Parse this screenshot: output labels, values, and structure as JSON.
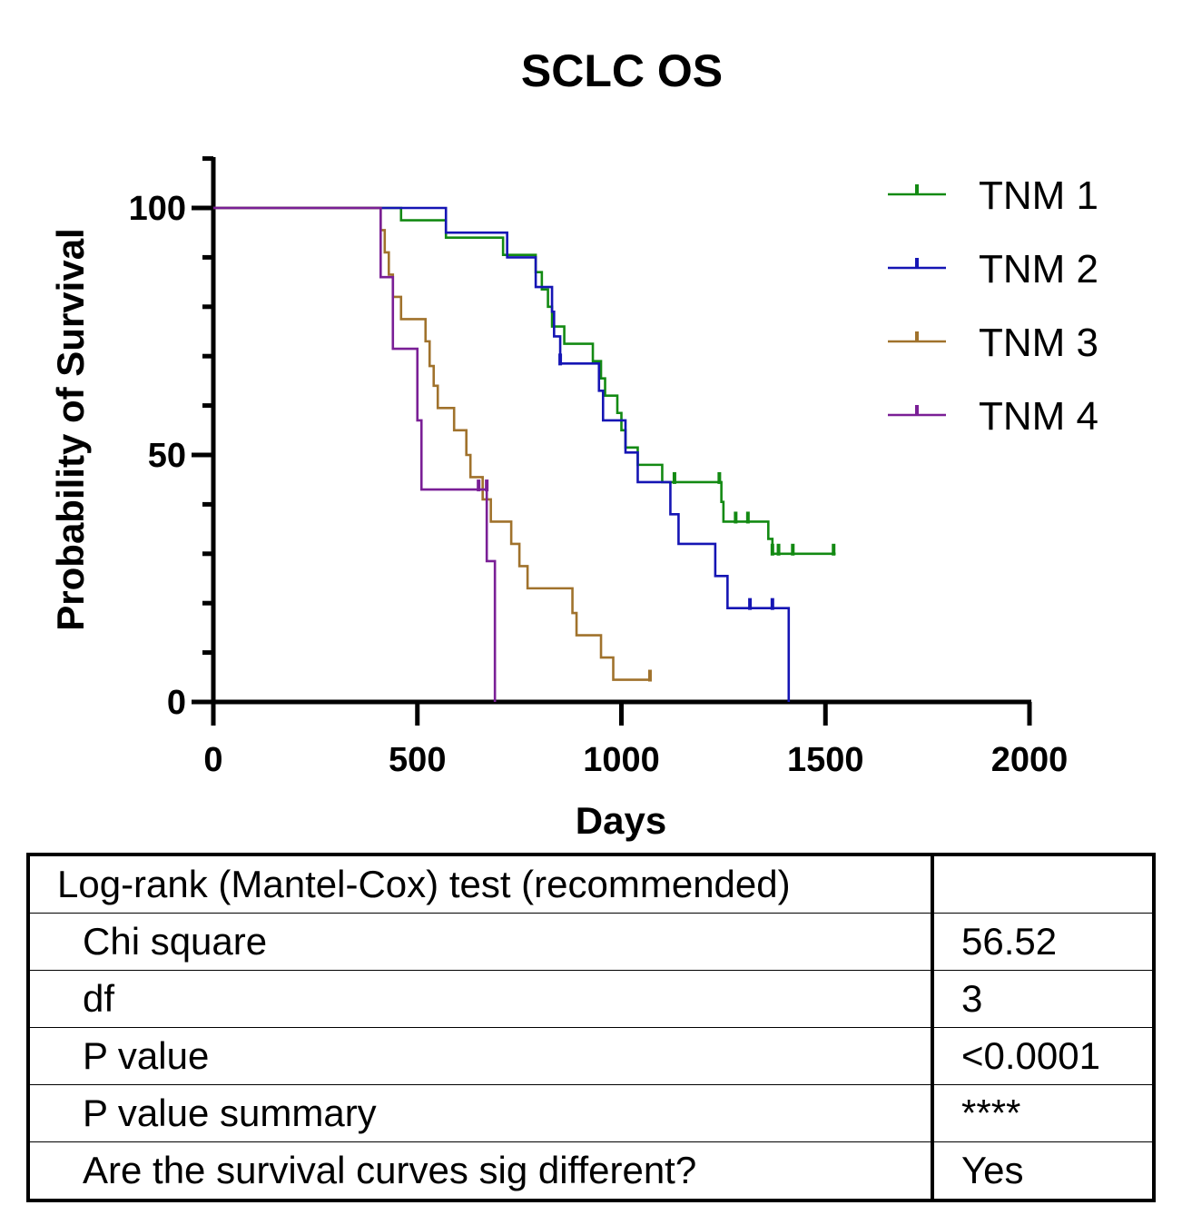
{
  "chart_data": {
    "type": "line",
    "title": "SCLC OS",
    "xlabel": "Days",
    "ylabel": "Probability of Survival",
    "xlim": [
      0,
      2000
    ],
    "ylim": [
      0,
      110
    ],
    "xticks": [
      0,
      500,
      1000,
      1500,
      2000
    ],
    "yticks": [
      0,
      50,
      100
    ],
    "grid": false,
    "legend_position": "top-right",
    "series": [
      {
        "name": "TNM 1",
        "color": "#138a13",
        "steps": [
          [
            0,
            100
          ],
          [
            460,
            97.5
          ],
          [
            570,
            94
          ],
          [
            710,
            90.5
          ],
          [
            790,
            87
          ],
          [
            805,
            83.5
          ],
          [
            820,
            80
          ],
          [
            830,
            76
          ],
          [
            860,
            72.5
          ],
          [
            930,
            69
          ],
          [
            950,
            65.5
          ],
          [
            960,
            62
          ],
          [
            990,
            58.5
          ],
          [
            1000,
            55
          ],
          [
            1010,
            51.5
          ],
          [
            1040,
            48
          ],
          [
            1100,
            44.5
          ],
          [
            1245,
            40.5
          ],
          [
            1250,
            36.5
          ],
          [
            1360,
            33
          ],
          [
            1370,
            30
          ],
          [
            1525,
            30
          ]
        ],
        "censored": [
          [
            1130,
            44.5
          ],
          [
            1240,
            44.5
          ],
          [
            1280,
            36.5
          ],
          [
            1310,
            36.5
          ],
          [
            1370,
            30
          ],
          [
            1385,
            30
          ],
          [
            1420,
            30
          ],
          [
            1520,
            30
          ]
        ]
      },
      {
        "name": "TNM 2",
        "color": "#1515b4",
        "steps": [
          [
            0,
            100
          ],
          [
            570,
            95
          ],
          [
            720,
            90
          ],
          [
            790,
            84
          ],
          [
            830,
            79
          ],
          [
            835,
            74
          ],
          [
            850,
            68.5
          ],
          [
            945,
            63
          ],
          [
            955,
            57
          ],
          [
            1010,
            50.5
          ],
          [
            1040,
            44.5
          ],
          [
            1120,
            38
          ],
          [
            1140,
            32
          ],
          [
            1230,
            25.5
          ],
          [
            1260,
            19
          ],
          [
            1410,
            0
          ]
        ],
        "censored": [
          [
            850,
            68.5
          ],
          [
            1315,
            19
          ],
          [
            1370,
            19
          ]
        ]
      },
      {
        "name": "TNM 3",
        "color": "#a0722c",
        "steps": [
          [
            0,
            100
          ],
          [
            410,
            95.5
          ],
          [
            420,
            91
          ],
          [
            430,
            86.5
          ],
          [
            440,
            82
          ],
          [
            460,
            77.5
          ],
          [
            520,
            73
          ],
          [
            530,
            68
          ],
          [
            540,
            64
          ],
          [
            550,
            59.5
          ],
          [
            590,
            55
          ],
          [
            620,
            50
          ],
          [
            630,
            45.5
          ],
          [
            660,
            41
          ],
          [
            680,
            36.5
          ],
          [
            730,
            32
          ],
          [
            750,
            27.5
          ],
          [
            770,
            23
          ],
          [
            880,
            18
          ],
          [
            890,
            13.5
          ],
          [
            950,
            9
          ],
          [
            980,
            4.5
          ],
          [
            1070,
            4.5
          ]
        ],
        "censored": [
          [
            1070,
            4.5
          ]
        ]
      },
      {
        "name": "TNM 4",
        "color": "#7a1f96",
        "steps": [
          [
            0,
            100
          ],
          [
            410,
            86
          ],
          [
            440,
            71.5
          ],
          [
            500,
            57
          ],
          [
            510,
            43
          ],
          [
            670,
            28.5
          ],
          [
            690,
            0
          ]
        ],
        "censored": [
          [
            650,
            43
          ],
          [
            670,
            43
          ]
        ]
      }
    ]
  },
  "table": {
    "header": "Log-rank (Mantel-Cox) test (recommended)",
    "rows": [
      {
        "label": "Chi square",
        "value": "56.52"
      },
      {
        "label": "df",
        "value": "3"
      },
      {
        "label": "P value",
        "value": "<0.0001"
      },
      {
        "label": "P value summary",
        "value": "****"
      },
      {
        "label": "Are the survival curves sig different?",
        "value": "Yes"
      }
    ]
  }
}
